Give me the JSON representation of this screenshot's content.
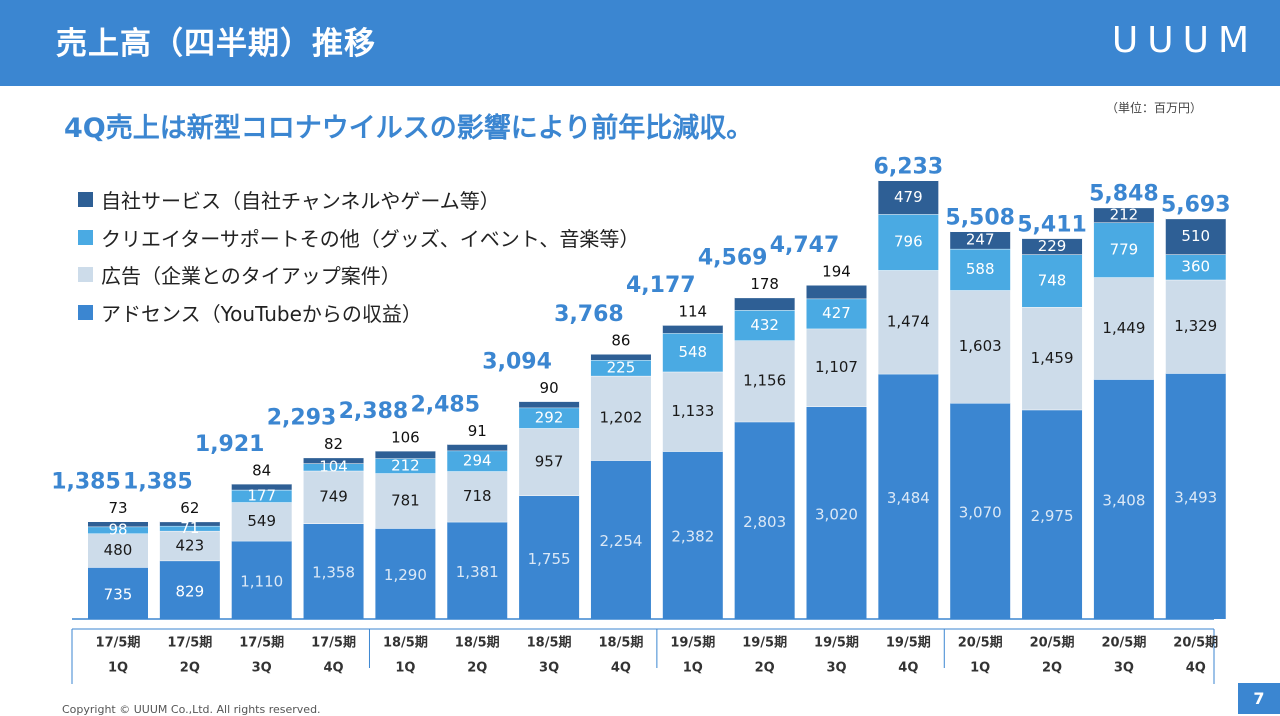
{
  "header": {
    "title": "売上高（四半期）推移",
    "logo_text": "UUUM"
  },
  "subtitle": "4Q売上は新型コロナウイルスの影響により前年比減収。",
  "unit_note": "（単位：百万円）",
  "legend": [
    {
      "label": "自社サービス（自社チャンネルやゲーム等）",
      "color": "#2e5f95"
    },
    {
      "label": "クリエイターサポートその他（グッズ、イベント、音楽等）",
      "color": "#4aaae3"
    },
    {
      "label": "広告（企業とのタイアップ案件）",
      "color": "#cddcea"
    },
    {
      "label": "アドセンス（YouTubeからの収益）",
      "color": "#3b86d1"
    }
  ],
  "chart_data": {
    "type": "bar",
    "stacked": true,
    "categories": [
      [
        "17/5期",
        "1Q"
      ],
      [
        "17/5期",
        "2Q"
      ],
      [
        "17/5期",
        "3Q"
      ],
      [
        "17/5期",
        "4Q"
      ],
      [
        "18/5期",
        "1Q"
      ],
      [
        "18/5期",
        "2Q"
      ],
      [
        "18/5期",
        "3Q"
      ],
      [
        "18/5期",
        "4Q"
      ],
      [
        "19/5期",
        "1Q"
      ],
      [
        "19/5期",
        "2Q"
      ],
      [
        "19/5期",
        "3Q"
      ],
      [
        "19/5期",
        "4Q"
      ],
      [
        "20/5期",
        "1Q"
      ],
      [
        "20/5期",
        "2Q"
      ],
      [
        "20/5期",
        "3Q"
      ],
      [
        "20/5期",
        "4Q"
      ]
    ],
    "series": [
      {
        "name": "アドセンス（YouTubeからの収益）",
        "color": "#3b86d1",
        "values": [
          735,
          829,
          1110,
          1358,
          1290,
          1381,
          1755,
          2254,
          2382,
          2803,
          3020,
          3484,
          3070,
          2975,
          3408,
          3493
        ],
        "labels": [
          "735",
          "829",
          "1,110",
          "1,358",
          "1,290",
          "1,381",
          "1,755",
          "2,254",
          "2,382",
          "2,803",
          "3,020",
          "3,484",
          "3,070",
          "2,975",
          "3,408",
          "3,493"
        ]
      },
      {
        "name": "広告（企業とのタイアップ案件）",
        "color": "#cddcea",
        "values": [
          480,
          423,
          549,
          749,
          781,
          718,
          957,
          1202,
          1133,
          1156,
          1107,
          1474,
          1603,
          1459,
          1449,
          1329
        ],
        "labels": [
          "480",
          "423",
          "549",
          "749",
          "781",
          "718",
          "957",
          "1,202",
          "1,133",
          "1,156",
          "1,107",
          "1,474",
          "1,603",
          "1,459",
          "1,449",
          "1,329"
        ]
      },
      {
        "name": "クリエイターサポートその他（グッズ、イベント、音楽等）",
        "color": "#4aaae3",
        "values": [
          98,
          71,
          177,
          104,
          212,
          294,
          292,
          225,
          548,
          432,
          427,
          796,
          588,
          748,
          779,
          360
        ],
        "labels": [
          "98",
          "71",
          "177",
          "104",
          "212",
          "294",
          "292",
          "225",
          "548",
          "432",
          "427",
          "796",
          "588",
          "748",
          "779",
          "360"
        ]
      },
      {
        "name": "自社サービス（自社チャンネルやゲーム等）",
        "color": "#2e5f95",
        "values": [
          73,
          62,
          84,
          82,
          106,
          91,
          90,
          86,
          114,
          178,
          194,
          479,
          247,
          229,
          212,
          510
        ],
        "labels": [
          "73",
          "62",
          "84",
          "82",
          "106",
          "91",
          "90",
          "86",
          "114",
          "178",
          "194",
          "479",
          "247",
          "229",
          "212",
          "510"
        ]
      }
    ],
    "totals": [
      1385,
      1385,
      1921,
      2293,
      2388,
      2485,
      3094,
      3768,
      4177,
      4569,
      4747,
      6233,
      5508,
      5411,
      5848,
      5693
    ],
    "total_labels": [
      "1,385",
      "1,385",
      "1,921",
      "2,293",
      "2,388",
      "2,485",
      "3,094",
      "3,768",
      "4,177",
      "4,569",
      "4,747",
      "6,233",
      "5,508",
      "5,411",
      "5,848",
      "5,693"
    ],
    "ylim": [
      0,
      6800
    ]
  },
  "footer": "Copyright © UUUM Co.,Ltd. All rights reserved.",
  "page_number": "7"
}
